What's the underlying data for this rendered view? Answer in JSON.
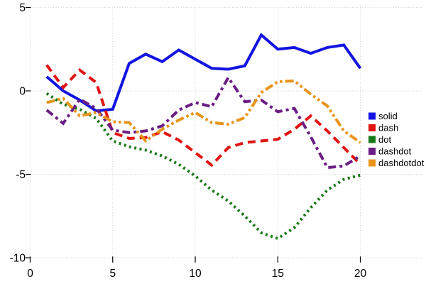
{
  "chart_data": {
    "type": "line",
    "title": "",
    "xlabel": "",
    "ylabel": "",
    "xlim": [
      0,
      21
    ],
    "ylim": [
      -10,
      5
    ],
    "grid": "dotted",
    "grid_color": "#ccccdd",
    "legend_position": "center-right",
    "x_ticks": [
      0,
      5,
      10,
      15,
      20
    ],
    "x_tick_labels": [
      "0",
      "5",
      "10",
      "15",
      "20"
    ],
    "y_ticks": [
      5,
      0,
      -5,
      -10
    ],
    "y_tick_labels": [
      "5",
      "0",
      "-5",
      "-10"
    ],
    "x": [
      1,
      2,
      3,
      4,
      5,
      6,
      7,
      8,
      9,
      10,
      11,
      12,
      13,
      14,
      15,
      16,
      17,
      18,
      19,
      20
    ],
    "series": [
      {
        "name": "solid",
        "color": "#1414e1",
        "line_style": "solid",
        "values": [
          0.85,
          0.0,
          -0.55,
          -1.2,
          -1.1,
          1.65,
          2.2,
          1.75,
          2.45,
          1.9,
          1.35,
          1.3,
          1.5,
          3.35,
          2.5,
          2.6,
          2.25,
          2.6,
          2.75,
          1.35
        ]
      },
      {
        "name": "dash",
        "color": "#e11414",
        "line_style": "dash",
        "values": [
          1.55,
          0.2,
          1.25,
          0.5,
          -2.5,
          -2.85,
          -2.8,
          -2.45,
          -2.95,
          -3.7,
          -4.45,
          -3.4,
          -3.1,
          -3.0,
          -2.9,
          -2.3,
          -1.5,
          -2.4,
          -3.4,
          -4.4
        ]
      },
      {
        "name": "dot",
        "color": "#1a7a1a",
        "line_style": "dot",
        "values": [
          -0.15,
          -0.8,
          -1.1,
          -1.65,
          -3.0,
          -3.35,
          -3.55,
          -3.9,
          -4.4,
          -5.1,
          -5.95,
          -6.6,
          -7.5,
          -8.5,
          -8.85,
          -8.2,
          -7.0,
          -5.95,
          -5.3,
          -5.05
        ]
      },
      {
        "name": "dashdot",
        "color": "#6b1d85",
        "line_style": "dashdot",
        "values": [
          -1.15,
          -1.95,
          -0.5,
          -1.05,
          -2.35,
          -2.5,
          -2.4,
          -2.1,
          -1.15,
          -0.7,
          -0.95,
          0.8,
          -0.65,
          -0.55,
          -1.25,
          -1.05,
          -2.75,
          -4.6,
          -4.5,
          -3.9
        ]
      },
      {
        "name": "dashdotdot",
        "color": "#e8941a",
        "line_style": "dashdotdot",
        "values": [
          -0.7,
          -0.45,
          -1.5,
          -1.3,
          -1.85,
          -1.9,
          -3.0,
          -2.3,
          -1.75,
          -1.3,
          -1.9,
          -2.0,
          -1.6,
          -0.1,
          0.55,
          0.6,
          -0.2,
          -0.9,
          -2.4,
          -3.1
        ]
      }
    ],
    "legend_labels": [
      "solid",
      "dash",
      "dot",
      "dashdot",
      "dashdotdot"
    ]
  }
}
